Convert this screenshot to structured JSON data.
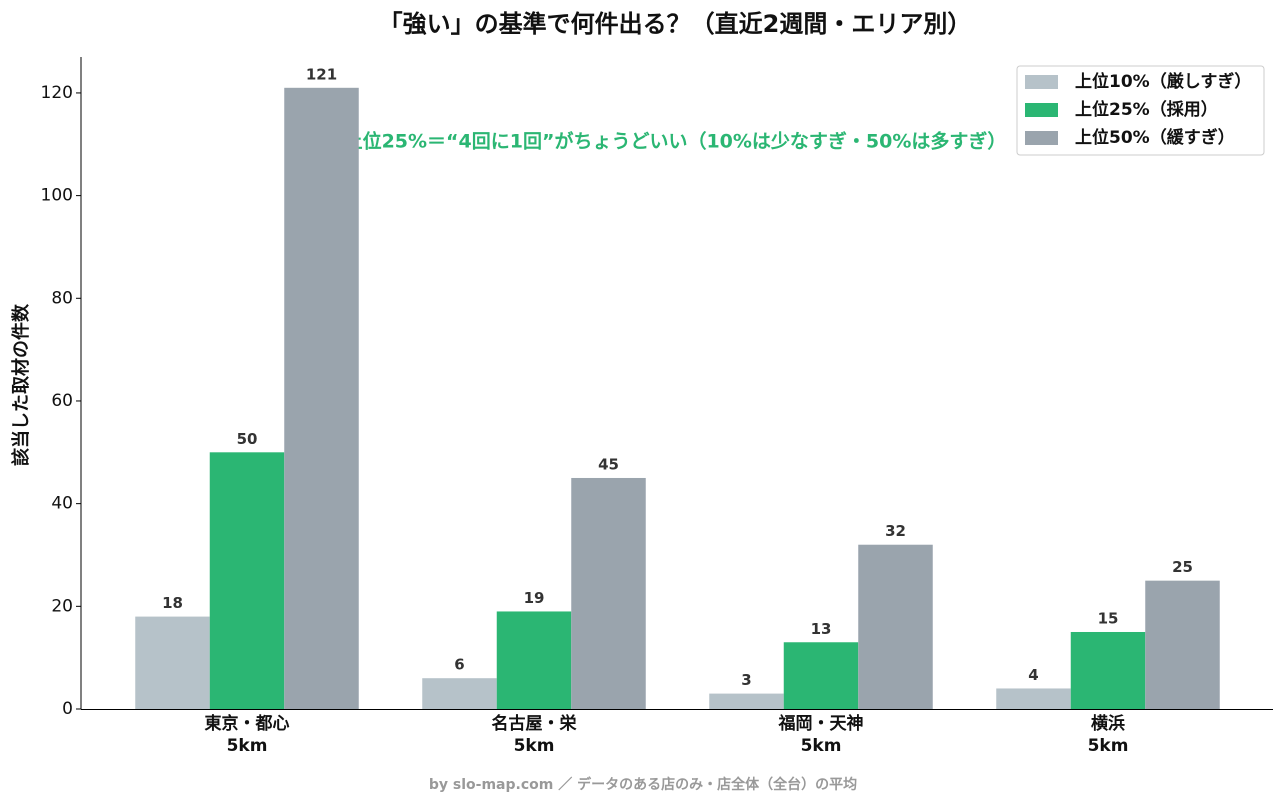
{
  "chart_data": {
    "type": "bar",
    "title": "「強い」の基準で何件出る？（直近2週間・エリア別）",
    "y_label": "該当した取材の件数",
    "annotation": "上位25%＝“4回に1回”がちょうどいい（10%は少なすぎ・50%は多すぎ）",
    "footer": "by slo-map.com ／ データのある店のみ・店全体（全台）の平均",
    "categories": [
      "東京・都心\n5km",
      "名古屋・栄\n5km",
      "福岡・天神\n5km",
      "横浜\n5km"
    ],
    "series": [
      {
        "name": "上位10%（厳しすぎ）",
        "color": "#b6c2c9",
        "values": [
          18,
          6,
          3,
          4
        ]
      },
      {
        "name": "上位25%（採用）",
        "color": "#2bb673",
        "values": [
          50,
          19,
          13,
          15
        ]
      },
      {
        "name": "上位50%（緩すぎ）",
        "color": "#9aa4ad",
        "values": [
          121,
          45,
          32,
          25
        ]
      }
    ],
    "ylim": [
      0,
      127
    ],
    "yticks": [
      0,
      20,
      40,
      60,
      80,
      100,
      120
    ],
    "legend": "upper right"
  }
}
